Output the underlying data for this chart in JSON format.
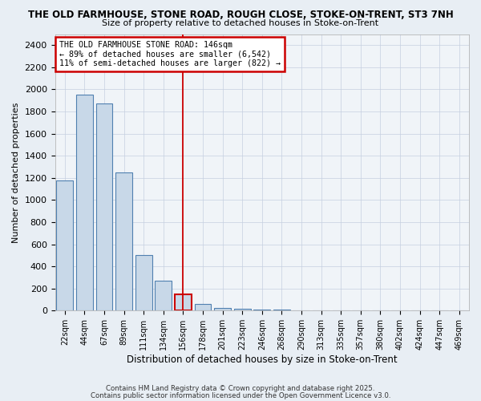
{
  "title": "THE OLD FARMHOUSE, STONE ROAD, ROUGH CLOSE, STOKE-ON-TRENT, ST3 7NH",
  "subtitle": "Size of property relative to detached houses in Stoke-on-Trent",
  "xlabel": "Distribution of detached houses by size in Stoke-on-Trent",
  "ylabel": "Number of detached properties",
  "bin_labels": [
    "22sqm",
    "44sqm",
    "67sqm",
    "89sqm",
    "111sqm",
    "134sqm",
    "156sqm",
    "178sqm",
    "201sqm",
    "223sqm",
    "246sqm",
    "268sqm",
    "290sqm",
    "313sqm",
    "335sqm",
    "357sqm",
    "380sqm",
    "402sqm",
    "424sqm",
    "447sqm",
    "469sqm"
  ],
  "bar_values": [
    1175,
    1950,
    1875,
    1250,
    500,
    270,
    150,
    60,
    25,
    15,
    10,
    8,
    5,
    3,
    2,
    2,
    1,
    1,
    1,
    0,
    0
  ],
  "bar_color": "#c8d8e8",
  "bar_edgecolor": "#5080b0",
  "highlight_bar_index": 6,
  "highlight_color": "#cc0000",
  "annotation_title": "THE OLD FARMHOUSE STONE ROAD: 146sqm",
  "annotation_line1": "← 89% of detached houses are smaller (6,542)",
  "annotation_line2": "11% of semi-detached houses are larger (822) →",
  "ylim": [
    0,
    2500
  ],
  "yticks": [
    0,
    200,
    400,
    600,
    800,
    1000,
    1200,
    1400,
    1600,
    1800,
    2000,
    2200,
    2400
  ],
  "footer1": "Contains HM Land Registry data © Crown copyright and database right 2025.",
  "footer2": "Contains public sector information licensed under the Open Government Licence v3.0.",
  "bg_color": "#e8eef4",
  "plot_bg_color": "#f0f4f8"
}
